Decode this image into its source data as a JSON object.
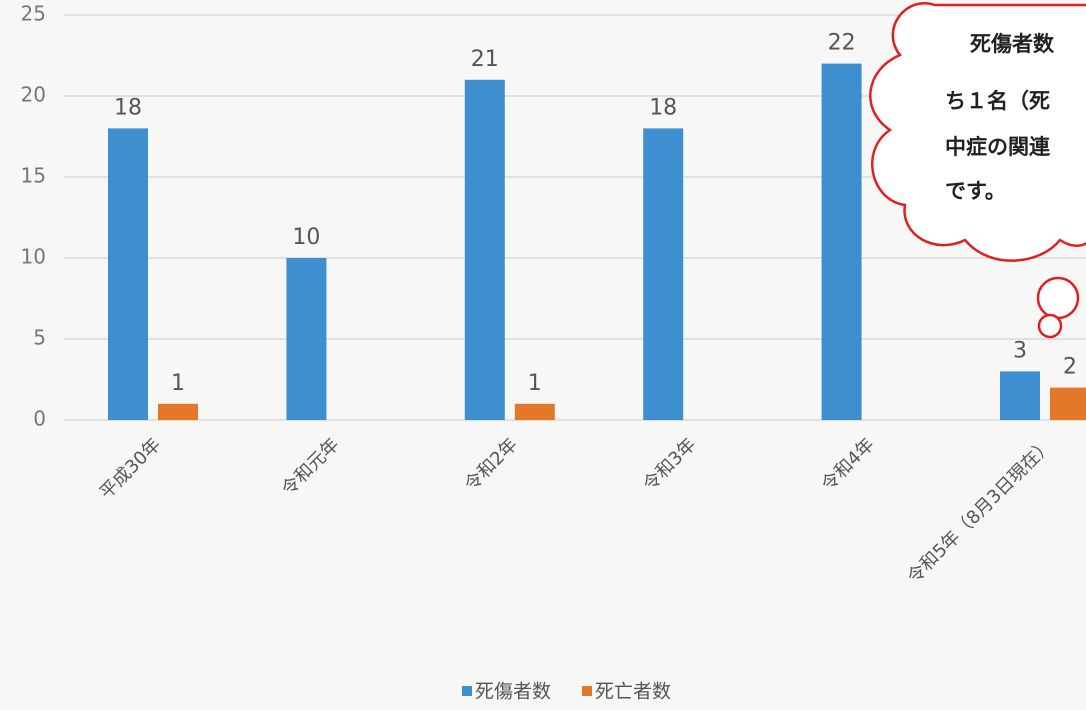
{
  "chart_data": {
    "type": "bar",
    "categories": [
      "平成30年",
      "令和元年",
      "令和2年",
      "令和3年",
      "令和4年",
      "令和5年（8月3日現在）"
    ],
    "series": [
      {
        "name": "死傷者数",
        "color": "#3d8fd0",
        "values": [
          18,
          10,
          21,
          18,
          22,
          3
        ]
      },
      {
        "name": "死亡者数",
        "color": "#e4782a",
        "values": [
          1,
          null,
          1,
          null,
          null,
          2
        ]
      }
    ],
    "ylim": [
      0,
      25
    ],
    "yticks": [
      0,
      5,
      10,
      15,
      20,
      25
    ],
    "grid": true,
    "legend": "bottom",
    "annotation": [
      "死傷者数",
      "ち１名（死",
      "中症の関連",
      "です。"
    ]
  }
}
